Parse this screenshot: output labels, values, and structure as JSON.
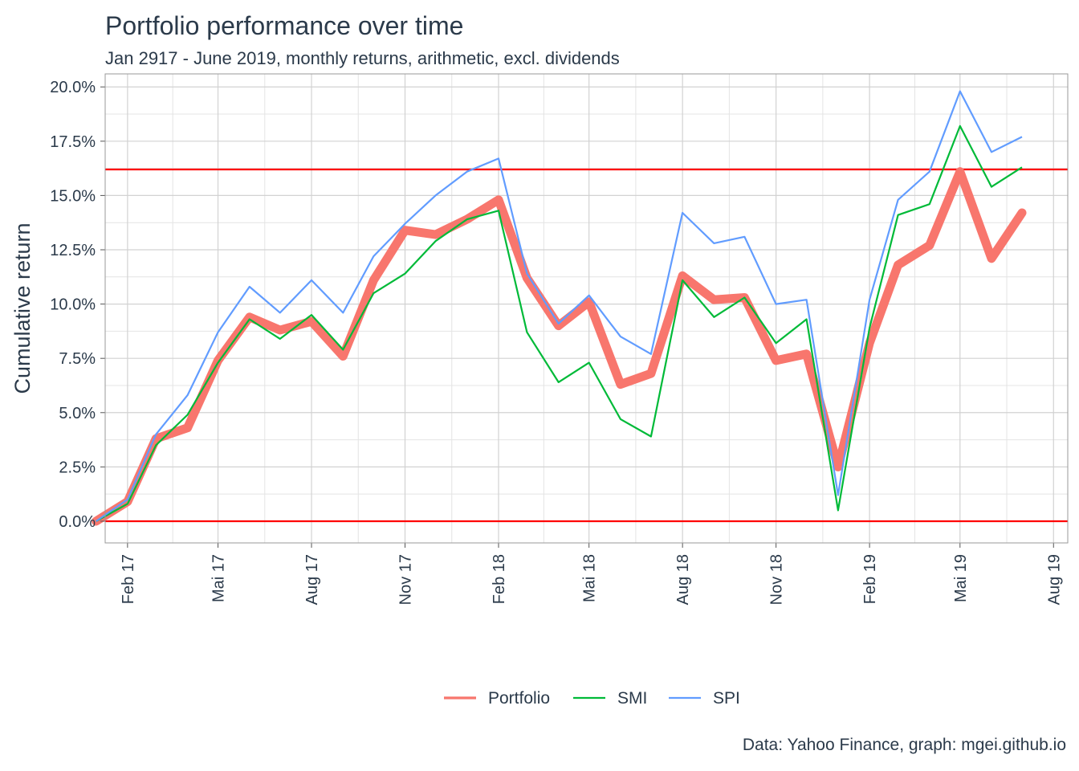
{
  "chart_data": {
    "type": "line",
    "title": "Portfolio performance over time",
    "subtitle": "Jan 2917 - June 2019, monthly returns, arithmetic, excl. dividends",
    "caption": "Data: Yahoo Finance, graph: mgei.github.io",
    "ylabel": "Cumulative return",
    "xlabel": "",
    "ylim": [
      -1.0,
      20.6
    ],
    "yticks": [
      {
        "value": 0.0,
        "label": "0.0%"
      },
      {
        "value": 2.5,
        "label": "2.5%"
      },
      {
        "value": 5.0,
        "label": "5.0%"
      },
      {
        "value": 7.5,
        "label": "7.5%"
      },
      {
        "value": 10.0,
        "label": "10.0%"
      },
      {
        "value": 12.5,
        "label": "12.5%"
      },
      {
        "value": 15.0,
        "label": "15.0%"
      },
      {
        "value": 17.5,
        "label": "17.5%"
      },
      {
        "value": 20.0,
        "label": "20.0%"
      }
    ],
    "xlim": [
      "2017-01-10",
      "2019-08-15"
    ],
    "xticks": [
      {
        "date": "2017-02-01",
        "label": "Feb 17"
      },
      {
        "date": "2017-05-01",
        "label": "Mai 17"
      },
      {
        "date": "2017-08-01",
        "label": "Aug 17"
      },
      {
        "date": "2017-11-01",
        "label": "Nov 17"
      },
      {
        "date": "2018-02-01",
        "label": "Feb 18"
      },
      {
        "date": "2018-05-01",
        "label": "Mai 18"
      },
      {
        "date": "2018-08-01",
        "label": "Aug 18"
      },
      {
        "date": "2018-11-01",
        "label": "Nov 18"
      },
      {
        "date": "2019-02-01",
        "label": "Feb 19"
      },
      {
        "date": "2019-05-01",
        "label": "Mai 19"
      },
      {
        "date": "2019-08-01",
        "label": "Aug 19"
      }
    ],
    "hlines": [
      {
        "value": 0.0,
        "color": "#ff0000"
      },
      {
        "value": 16.2,
        "color": "#ff0000"
      }
    ],
    "grid": true,
    "legend": "bottom",
    "x": [
      "2017-01-01",
      "2017-02-01",
      "2017-03-01",
      "2017-04-01",
      "2017-05-01",
      "2017-06-01",
      "2017-07-01",
      "2017-08-01",
      "2017-09-01",
      "2017-10-01",
      "2017-11-01",
      "2017-12-01",
      "2018-01-01",
      "2018-02-01",
      "2018-03-01",
      "2018-04-01",
      "2018-05-01",
      "2018-06-01",
      "2018-07-01",
      "2018-08-01",
      "2018-09-01",
      "2018-10-01",
      "2018-11-01",
      "2018-12-01",
      "2019-01-01",
      "2019-02-01",
      "2019-03-01",
      "2019-04-01",
      "2019-05-01",
      "2019-06-01",
      "2019-07-01"
    ],
    "series": [
      {
        "name": "Portfolio",
        "color": "#f8766d",
        "width": 11,
        "values": [
          0.0,
          0.9,
          3.8,
          4.3,
          7.4,
          9.4,
          8.8,
          9.2,
          7.6,
          11.1,
          13.4,
          13.2,
          13.9,
          14.8,
          11.2,
          9.0,
          10.1,
          6.3,
          6.8,
          11.3,
          10.2,
          10.3,
          7.4,
          7.7,
          2.5,
          8.2,
          11.8,
          12.7,
          16.1,
          12.1,
          14.2
        ]
      },
      {
        "name": "SMI",
        "color": "#00ba38",
        "width": 2.2,
        "values": [
          0.0,
          0.8,
          3.5,
          4.9,
          7.3,
          9.3,
          8.4,
          9.5,
          7.9,
          10.5,
          11.4,
          12.9,
          13.9,
          14.3,
          8.7,
          6.4,
          7.3,
          4.7,
          3.9,
          11.1,
          9.4,
          10.3,
          8.2,
          9.3,
          0.5,
          8.9,
          14.1,
          14.6,
          18.2,
          15.4,
          16.3
        ]
      },
      {
        "name": "SPI",
        "color": "#619cff",
        "width": 2.2,
        "values": [
          0.0,
          1.0,
          4.0,
          5.8,
          8.7,
          10.8,
          9.6,
          11.1,
          9.6,
          12.2,
          13.7,
          15.0,
          16.1,
          16.7,
          11.4,
          9.1,
          10.4,
          8.5,
          7.7,
          14.2,
          12.8,
          13.1,
          10.0,
          10.2,
          1.2,
          10.2,
          14.8,
          16.1,
          19.8,
          17.0,
          17.7
        ]
      }
    ]
  }
}
